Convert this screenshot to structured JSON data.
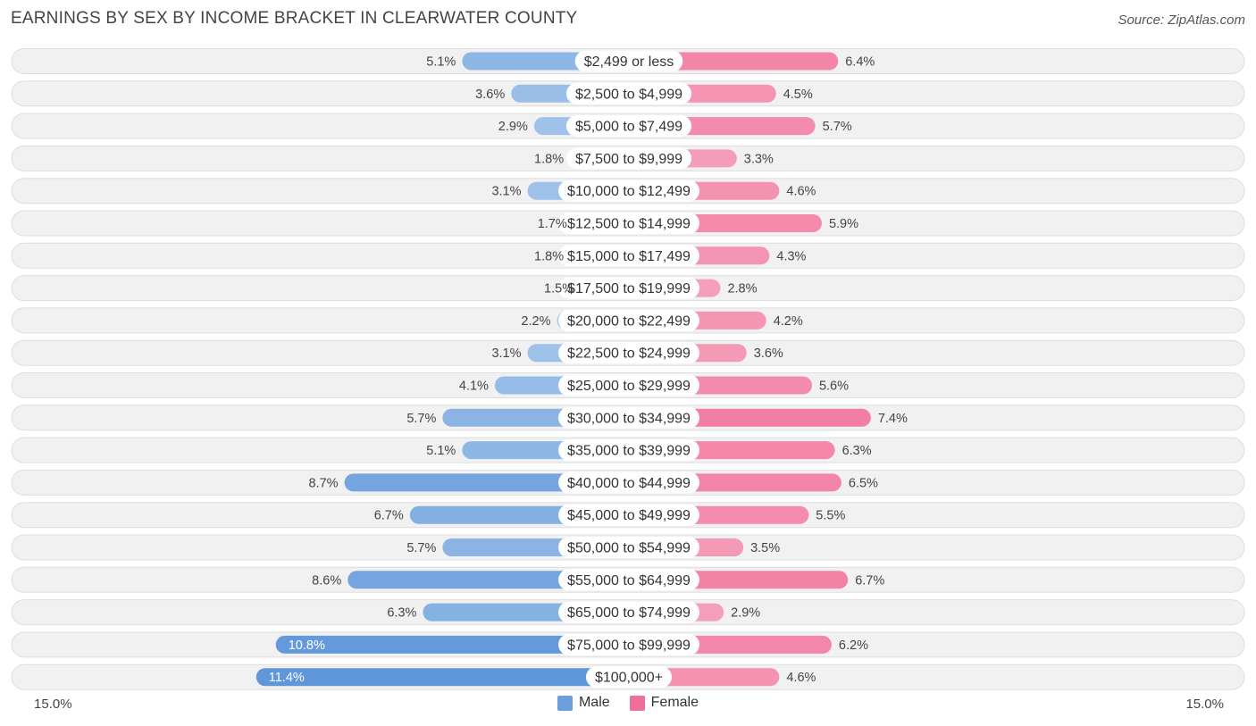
{
  "chart_data": {
    "type": "bar",
    "orientation": "horizontal-diverging",
    "title": "EARNINGS BY SEX BY INCOME BRACKET IN CLEARWATER COUNTY",
    "source": "Source: ZipAtlas.com",
    "categories": [
      "$2,499 or less",
      "$2,500 to $4,999",
      "$5,000 to $7,499",
      "$7,500 to $9,999",
      "$10,000 to $12,499",
      "$12,500 to $14,999",
      "$15,000 to $17,499",
      "$17,500 to $19,999",
      "$20,000 to $22,499",
      "$22,500 to $24,999",
      "$25,000 to $29,999",
      "$30,000 to $34,999",
      "$35,000 to $39,999",
      "$40,000 to $44,999",
      "$45,000 to $49,999",
      "$50,000 to $54,999",
      "$55,000 to $64,999",
      "$65,000 to $74,999",
      "$75,000 to $99,999",
      "$100,000+"
    ],
    "series": [
      {
        "name": "Male",
        "color": "#6a9fdc",
        "values": [
          5.1,
          3.6,
          2.9,
          1.8,
          3.1,
          1.7,
          1.8,
          1.5,
          2.2,
          3.1,
          4.1,
          5.7,
          5.1,
          8.7,
          6.7,
          5.7,
          8.6,
          6.3,
          10.8,
          11.4
        ],
        "labels": [
          "5.1%",
          "3.6%",
          "2.9%",
          "1.8%",
          "3.1%",
          "1.7%",
          "1.8%",
          "1.5%",
          "2.2%",
          "3.1%",
          "4.1%",
          "5.7%",
          "5.1%",
          "8.7%",
          "6.7%",
          "5.7%",
          "8.6%",
          "6.3%",
          "10.8%",
          "11.4%"
        ]
      },
      {
        "name": "Female",
        "color": "#f06f98",
        "values": [
          6.4,
          4.5,
          5.7,
          3.3,
          4.6,
          5.9,
          4.3,
          2.8,
          4.2,
          3.6,
          5.6,
          7.4,
          6.3,
          6.5,
          5.5,
          3.5,
          6.7,
          2.9,
          6.2,
          4.6
        ],
        "labels": [
          "6.4%",
          "4.5%",
          "5.7%",
          "3.3%",
          "4.6%",
          "5.9%",
          "4.3%",
          "2.8%",
          "4.2%",
          "3.6%",
          "5.6%",
          "7.4%",
          "6.3%",
          "6.5%",
          "5.5%",
          "3.5%",
          "6.7%",
          "2.9%",
          "6.2%",
          "4.6%"
        ]
      }
    ],
    "xlim": [
      -15,
      15
    ],
    "axis_left_label": "15.0%",
    "axis_right_label": "15.0%",
    "legend": [
      "Male",
      "Female"
    ],
    "legend_position": "bottom-center"
  }
}
